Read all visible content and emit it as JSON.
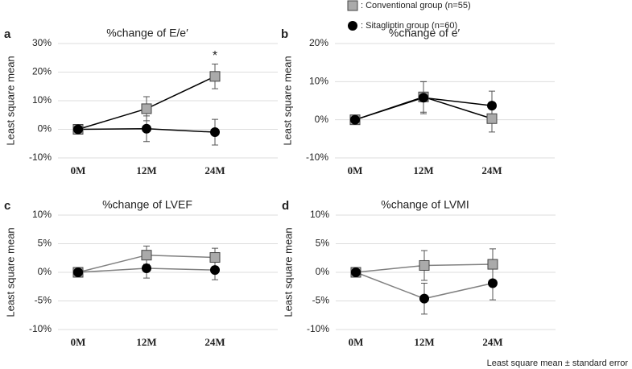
{
  "chart_data": [
    {
      "type": "line",
      "panel": "a",
      "title": "%change of E/e′",
      "y_label": "Least square mean",
      "categories": [
        "0M",
        "12M",
        "24M"
      ],
      "series": [
        {
          "name": ": Conventional group (n=55)",
          "color": "#aaaaaa",
          "marker": "square",
          "values": [
            0,
            7.2,
            18.5
          ],
          "errors": [
            null,
            4.2,
            4.3
          ]
        },
        {
          "name": ": Sitagliptin group (n=60)",
          "color": "#000000",
          "marker": "circle",
          "values": [
            0,
            0.2,
            -1
          ],
          "errors": [
            null,
            4.5,
            4.5
          ]
        }
      ],
      "line_color": "#000000",
      "annotation": "*",
      "ylim": [
        -10,
        30
      ],
      "yticks": [
        {
          "value": -10,
          "label": "-10%"
        },
        {
          "value": 0,
          "label": "0%"
        },
        {
          "value": 10,
          "label": "10%"
        },
        {
          "value": 20,
          "label": "20%"
        },
        {
          "value": 30,
          "label": "30%"
        }
      ],
      "grid": true
    },
    {
      "type": "line",
      "panel": "b",
      "title": "%change of e′",
      "y_label": "Least square mean",
      "categories": [
        "0M",
        "12M",
        "24M"
      ],
      "series": [
        {
          "name": ": Conventional group (n=55)",
          "color": "#aaaaaa",
          "marker": "square",
          "values": [
            0,
            6,
            0.3
          ],
          "errors": [
            null,
            4,
            3.5
          ]
        },
        {
          "name": ": Sitagliptin group (n=60)",
          "color": "#000000",
          "marker": "circle",
          "values": [
            0,
            5.8,
            3.7
          ],
          "errors": [
            null,
            4.2,
            3.8
          ]
        }
      ],
      "line_color": "#000000",
      "ylim": [
        -10,
        20
      ],
      "yticks": [
        {
          "value": -10,
          "label": "-10%"
        },
        {
          "value": 0,
          "label": "0%"
        },
        {
          "value": 10,
          "label": "10%"
        },
        {
          "value": 20,
          "label": "20%"
        }
      ],
      "grid": true
    },
    {
      "type": "line",
      "panel": "c",
      "title": "%change of LVEF",
      "y_label": "Least square mean",
      "categories": [
        "0M",
        "12M",
        "24M"
      ],
      "series": [
        {
          "name": ": Conventional group (n=55)",
          "color": "#aaaaaa",
          "marker": "square",
          "values": [
            0,
            3,
            2.6
          ],
          "errors": [
            null,
            1.6,
            1.6
          ]
        },
        {
          "name": ": Sitagliptin group (n=60)",
          "color": "#000000",
          "marker": "circle",
          "values": [
            0,
            0.7,
            0.4
          ],
          "errors": [
            null,
            1.7,
            1.7
          ]
        }
      ],
      "line_color": "#808080",
      "ylim": [
        -10,
        10
      ],
      "yticks": [
        {
          "value": -10,
          "label": "-10%"
        },
        {
          "value": -5,
          "label": "-5%"
        },
        {
          "value": 0,
          "label": "0%"
        },
        {
          "value": 5,
          "label": "5%"
        },
        {
          "value": 10,
          "label": "10%"
        }
      ],
      "grid": true
    },
    {
      "type": "line",
      "panel": "d",
      "title": "%change of LVMI",
      "y_label": "Least square mean",
      "categories": [
        "0M",
        "12M",
        "24M"
      ],
      "series": [
        {
          "name": ": Conventional group (n=55)",
          "color": "#aaaaaa",
          "marker": "square",
          "values": [
            0,
            1.2,
            1.4
          ],
          "errors": [
            null,
            2.6,
            2.7
          ]
        },
        {
          "name": ": Sitagliptin group (n=60)",
          "color": "#000000",
          "marker": "circle",
          "values": [
            0,
            -4.6,
            -1.9
          ],
          "errors": [
            null,
            2.7,
            2.9
          ]
        }
      ],
      "line_color": "#808080",
      "ylim": [
        -10,
        10
      ],
      "yticks": [
        {
          "value": -10,
          "label": "-10%"
        },
        {
          "value": -5,
          "label": "-5%"
        },
        {
          "value": 0,
          "label": "0%"
        },
        {
          "value": 5,
          "label": "5%"
        },
        {
          "value": 10,
          "label": "10%"
        }
      ],
      "grid": true
    }
  ],
  "footnote": "Least square mean ± standard error"
}
